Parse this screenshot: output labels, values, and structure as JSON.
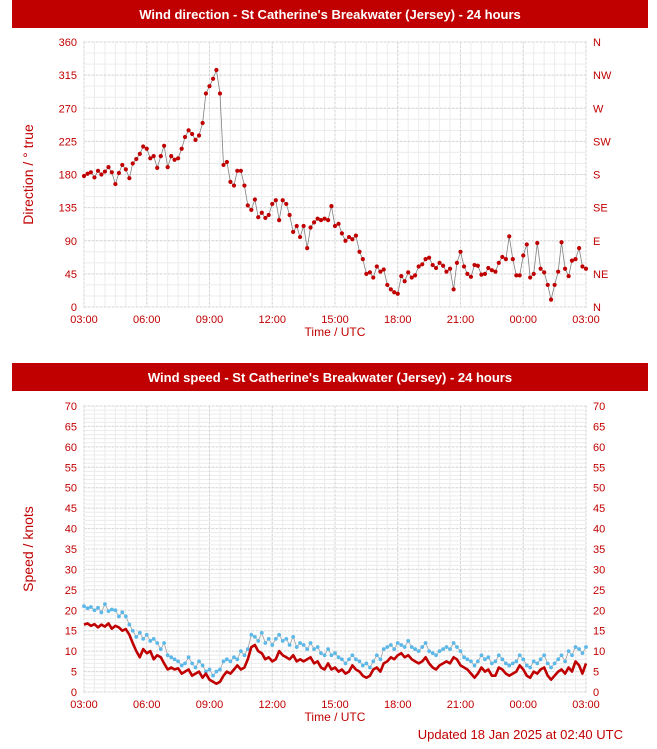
{
  "charts": {
    "direction": {
      "title": "Wind direction - St Catherine's Breakwater (Jersey) - 24 hours"
    },
    "speed": {
      "title": "Wind speed - St Catherine's Breakwater (Jersey) - 24 hours"
    }
  },
  "footer": {
    "updated": "Updated 18 Jan 2025 at 02:40 UTC"
  },
  "colors": {
    "banner": "#c00000",
    "primary_series": "#c00000",
    "gust_series": "#5bb8e8",
    "direction_line": "#808080"
  },
  "chart_data": [
    {
      "type": "scatter",
      "title": "Wind direction - St Catherine's Breakwater (Jersey) - 24 hours",
      "xlabel": "Time / UTC",
      "ylabel": "Direction / ° true",
      "ylim": [
        0,
        360
      ],
      "y_ticks": [
        0,
        45,
        90,
        135,
        180,
        225,
        270,
        315,
        360
      ],
      "x_tick_labels": [
        "03:00",
        "06:00",
        "09:00",
        "12:00",
        "15:00",
        "18:00",
        "21:00",
        "00:00",
        "03:00"
      ],
      "right_axis_labels": [
        "N",
        "NE",
        "E",
        "SE",
        "S",
        "SW",
        "W",
        "NW",
        "N"
      ],
      "grid": true,
      "series": [
        {
          "time_hours": [
            0.0,
            0.17,
            0.33,
            0.5,
            0.67,
            0.83,
            1.0,
            1.17,
            1.33,
            1.5,
            1.67,
            1.83,
            2.0,
            2.17,
            2.33,
            2.5,
            2.67,
            2.83,
            3.0,
            3.17,
            3.33,
            3.5,
            3.67,
            3.83,
            4.0,
            4.17,
            4.33,
            4.5,
            4.67,
            4.83,
            5.0,
            5.17,
            5.33,
            5.5,
            5.67,
            5.83,
            6.0,
            6.17,
            6.33,
            6.5,
            6.67,
            6.83,
            7.0,
            7.17,
            7.33,
            7.5,
            7.67,
            7.83,
            8.0,
            8.17,
            8.33,
            8.5,
            8.67,
            8.83,
            9.0,
            9.17,
            9.33,
            9.5,
            9.67,
            9.83,
            10.0,
            10.17,
            10.33,
            10.5,
            10.67,
            10.83,
            11.0,
            11.17,
            11.33,
            11.5,
            11.67,
            11.83,
            12.0,
            12.17,
            12.33,
            12.5,
            12.67,
            12.83,
            13.0,
            13.17,
            13.33,
            13.5,
            13.67,
            13.83,
            14.0,
            14.17,
            14.33,
            14.5,
            14.67,
            14.83,
            15.0,
            15.17,
            15.33,
            15.5,
            15.67,
            15.83,
            16.0,
            16.17,
            16.33,
            16.5,
            16.67,
            16.83,
            17.0,
            17.17,
            17.33,
            17.5,
            17.67,
            17.83,
            18.0,
            18.17,
            18.33,
            18.5,
            18.67,
            18.83,
            19.0,
            19.17,
            19.33,
            19.5,
            19.67,
            19.83,
            20.0,
            20.17,
            20.33,
            20.5,
            20.67,
            20.83,
            21.0,
            21.17,
            21.33,
            21.5,
            21.67,
            21.83,
            22.0,
            22.17,
            22.33,
            22.5,
            22.67,
            22.83,
            23.0,
            23.17,
            23.33,
            23.5,
            23.67,
            23.83,
            24.0
          ],
          "values": [
            178,
            181,
            183,
            176,
            185,
            180,
            184,
            190,
            183,
            167,
            182,
            193,
            187,
            175,
            195,
            201,
            208,
            218,
            215,
            202,
            205,
            189,
            205,
            219,
            190,
            205,
            200,
            202,
            215,
            231,
            240,
            235,
            227,
            233,
            250,
            290,
            300,
            310,
            322,
            290,
            193,
            197,
            170,
            165,
            185,
            185,
            165,
            138,
            132,
            146,
            122,
            128,
            121,
            125,
            140,
            145,
            118,
            145,
            140,
            125,
            102,
            110,
            95,
            110,
            80,
            108,
            115,
            120,
            118,
            120,
            118,
            137,
            110,
            113,
            100,
            90,
            95,
            92,
            97,
            75,
            65,
            45,
            47,
            40,
            55,
            48,
            51,
            30,
            24,
            20,
            18,
            42,
            35,
            47,
            40,
            43,
            55,
            58,
            65,
            67,
            57,
            53,
            60,
            56,
            48,
            52,
            24,
            60,
            75,
            55,
            45,
            41,
            57,
            56,
            44,
            45,
            53,
            50,
            48,
            60,
            68,
            65,
            96,
            65,
            43,
            43,
            70,
            85,
            40,
            45,
            87,
            52,
            47,
            30,
            10,
            30,
            48,
            88,
            52,
            42,
            63,
            65,
            80,
            55,
            52
          ]
        }
      ]
    },
    {
      "type": "line",
      "title": "Wind speed - St Catherine's Breakwater (Jersey) - 24 hours",
      "xlabel": "Time / UTC",
      "ylabel": "Speed / knots",
      "ylim": [
        0,
        70
      ],
      "y_ticks": [
        0,
        5,
        10,
        15,
        20,
        25,
        30,
        35,
        40,
        45,
        50,
        55,
        60,
        65,
        70
      ],
      "x_tick_labels": [
        "03:00",
        "06:00",
        "09:00",
        "12:00",
        "15:00",
        "18:00",
        "21:00",
        "00:00",
        "03:00"
      ],
      "grid": true,
      "series": [
        {
          "time_hours": [
            0.0,
            0.17,
            0.33,
            0.5,
            0.67,
            0.83,
            1.0,
            1.17,
            1.33,
            1.5,
            1.67,
            1.83,
            2.0,
            2.17,
            2.33,
            2.5,
            2.67,
            2.83,
            3.0,
            3.17,
            3.33,
            3.5,
            3.67,
            3.83,
            4.0,
            4.17,
            4.33,
            4.5,
            4.67,
            4.83,
            5.0,
            5.17,
            5.33,
            5.5,
            5.67,
            5.83,
            6.0,
            6.17,
            6.33,
            6.5,
            6.67,
            6.83,
            7.0,
            7.17,
            7.33,
            7.5,
            7.67,
            7.83,
            8.0,
            8.17,
            8.33,
            8.5,
            8.67,
            8.83,
            9.0,
            9.17,
            9.33,
            9.5,
            9.67,
            9.83,
            10.0,
            10.17,
            10.33,
            10.5,
            10.67,
            10.83,
            11.0,
            11.17,
            11.33,
            11.5,
            11.67,
            11.83,
            12.0,
            12.17,
            12.33,
            12.5,
            12.67,
            12.83,
            13.0,
            13.17,
            13.33,
            13.5,
            13.67,
            13.83,
            14.0,
            14.17,
            14.33,
            14.5,
            14.67,
            14.83,
            15.0,
            15.17,
            15.33,
            15.5,
            15.67,
            15.83,
            16.0,
            16.17,
            16.33,
            16.5,
            16.67,
            16.83,
            17.0,
            17.17,
            17.33,
            17.5,
            17.67,
            17.83,
            18.0,
            18.17,
            18.33,
            18.5,
            18.67,
            18.83,
            19.0,
            19.17,
            19.33,
            19.5,
            19.67,
            19.83,
            20.0,
            20.17,
            20.33,
            20.5,
            20.67,
            20.83,
            21.0,
            21.17,
            21.33,
            21.5,
            21.67,
            21.83,
            22.0,
            22.17,
            22.33,
            22.5,
            22.67,
            22.83,
            23.0,
            23.17,
            23.33,
            23.5,
            23.67,
            23.83,
            24.0
          ],
          "values": [
            16.5,
            16.8,
            16.2,
            16.6,
            15.8,
            16.5,
            16.0,
            16.8,
            15.5,
            16.2,
            15.8,
            15.0,
            15.4,
            14.0,
            12.0,
            10.0,
            8.5,
            10.5,
            9.5,
            10.0,
            8.0,
            9.0,
            8.5,
            7.0,
            5.5,
            6.0,
            5.5,
            5.8,
            4.5,
            5.0,
            5.5,
            4.0,
            4.5,
            5.0,
            3.5,
            4.5,
            3.0,
            2.5,
            2.0,
            2.5,
            4.0,
            5.0,
            4.5,
            5.5,
            6.5,
            5.5,
            6.0,
            8.0,
            11.0,
            11.5,
            10.0,
            9.5,
            8.0,
            8.5,
            7.5,
            8.0,
            10.0,
            9.0,
            8.5,
            8.0,
            9.0,
            7.5,
            8.0,
            7.5,
            8.0,
            8.5,
            7.0,
            7.5,
            6.0,
            5.5,
            7.0,
            5.5,
            6.0,
            5.0,
            5.5,
            4.5,
            5.0,
            6.5,
            5.5,
            5.0,
            4.0,
            3.5,
            4.0,
            5.5,
            6.0,
            5.0,
            7.0,
            7.5,
            8.5,
            8.0,
            9.0,
            9.5,
            8.5,
            9.0,
            8.0,
            7.5,
            7.0,
            7.5,
            8.5,
            7.0,
            6.0,
            5.5,
            6.5,
            7.0,
            7.5,
            7.0,
            8.5,
            8.0,
            6.5,
            6.0,
            5.5,
            4.5,
            3.5,
            4.5,
            6.0,
            5.0,
            5.5,
            4.0,
            4.0,
            6.0,
            5.5,
            4.5,
            4.0,
            4.5,
            5.0,
            6.5,
            5.5,
            4.0,
            3.5,
            5.0,
            4.5,
            5.5,
            6.0,
            4.0,
            3.0,
            4.0,
            5.0,
            5.5,
            4.5,
            6.0,
            5.0,
            7.5,
            6.5,
            4.5,
            7.0
          ]
        },
        {
          "time_hours": [
            0.0,
            0.17,
            0.33,
            0.5,
            0.67,
            0.83,
            1.0,
            1.17,
            1.33,
            1.5,
            1.67,
            1.83,
            2.0,
            2.17,
            2.33,
            2.5,
            2.67,
            2.83,
            3.0,
            3.17,
            3.33,
            3.5,
            3.67,
            3.83,
            4.0,
            4.17,
            4.33,
            4.5,
            4.67,
            4.83,
            5.0,
            5.17,
            5.33,
            5.5,
            5.67,
            5.83,
            6.0,
            6.17,
            6.33,
            6.5,
            6.67,
            6.83,
            7.0,
            7.17,
            7.33,
            7.5,
            7.67,
            7.83,
            8.0,
            8.17,
            8.33,
            8.5,
            8.67,
            8.83,
            9.0,
            9.17,
            9.33,
            9.5,
            9.67,
            9.83,
            10.0,
            10.17,
            10.33,
            10.5,
            10.67,
            10.83,
            11.0,
            11.17,
            11.33,
            11.5,
            11.67,
            11.83,
            12.0,
            12.17,
            12.33,
            12.5,
            12.67,
            12.83,
            13.0,
            13.17,
            13.33,
            13.5,
            13.67,
            13.83,
            14.0,
            14.17,
            14.33,
            14.5,
            14.67,
            14.83,
            15.0,
            15.17,
            15.33,
            15.5,
            15.67,
            15.83,
            16.0,
            16.17,
            16.33,
            16.5,
            16.67,
            16.83,
            17.0,
            17.17,
            17.33,
            17.5,
            17.67,
            17.83,
            18.0,
            18.17,
            18.33,
            18.5,
            18.67,
            18.83,
            19.0,
            19.17,
            19.33,
            19.5,
            19.67,
            19.83,
            20.0,
            20.17,
            20.33,
            20.5,
            20.67,
            20.83,
            21.0,
            21.17,
            21.33,
            21.5,
            21.67,
            21.83,
            22.0,
            22.17,
            22.33,
            22.5,
            22.67,
            22.83,
            23.0,
            23.17,
            23.33,
            23.5,
            23.67,
            23.83,
            24.0
          ],
          "values": [
            21.0,
            20.5,
            20.8,
            20.0,
            20.6,
            19.5,
            21.5,
            19.8,
            20.2,
            20.0,
            18.5,
            19.5,
            18.5,
            16.5,
            15.0,
            13.5,
            14.5,
            13.0,
            14.0,
            12.5,
            13.0,
            12.0,
            10.5,
            12.0,
            9.0,
            8.5,
            8.0,
            7.5,
            6.5,
            7.0,
            8.5,
            7.0,
            6.0,
            7.5,
            6.5,
            5.0,
            5.5,
            4.0,
            5.0,
            5.5,
            7.5,
            8.0,
            7.5,
            8.5,
            8.0,
            10.0,
            9.0,
            10.5,
            14.0,
            13.5,
            12.5,
            14.5,
            12.0,
            13.0,
            11.5,
            13.0,
            14.0,
            12.5,
            13.0,
            11.5,
            13.5,
            11.0,
            12.0,
            11.5,
            10.5,
            12.0,
            10.5,
            11.0,
            9.5,
            9.0,
            10.5,
            9.0,
            9.5,
            8.5,
            8.0,
            7.0,
            8.0,
            9.0,
            8.0,
            7.5,
            6.5,
            7.0,
            6.0,
            7.5,
            9.0,
            8.0,
            10.5,
            11.0,
            11.5,
            10.5,
            12.0,
            11.5,
            11.0,
            12.5,
            11.0,
            10.5,
            10.0,
            11.0,
            12.0,
            10.0,
            9.5,
            9.0,
            10.0,
            10.5,
            11.0,
            10.5,
            12.0,
            11.0,
            10.0,
            8.5,
            8.0,
            7.5,
            6.5,
            7.5,
            9.0,
            8.0,
            8.5,
            7.0,
            7.5,
            9.0,
            8.0,
            7.0,
            6.5,
            7.0,
            7.5,
            9.0,
            8.0,
            6.5,
            6.0,
            7.5,
            7.0,
            8.0,
            9.0,
            7.0,
            6.0,
            7.0,
            8.0,
            9.0,
            7.5,
            10.0,
            9.0,
            11.0,
            10.5,
            9.5,
            11.0
          ]
        }
      ]
    }
  ]
}
